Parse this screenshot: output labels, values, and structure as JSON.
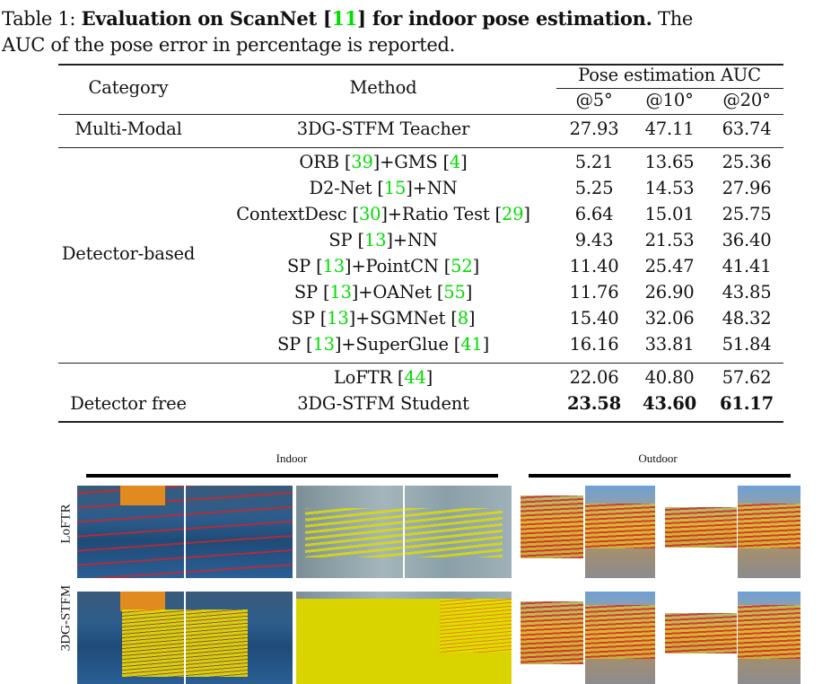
{
  "caption": {
    "label": "Table 1:",
    "title_pre": "Evaluation on ScanNet [",
    "title_cite": "11",
    "title_post": "] for indoor pose estimation.",
    "line1_tail": "The",
    "line2": "AUC of the pose error in percentage is reported."
  },
  "table": {
    "headers": {
      "category": "Category",
      "method": "Method",
      "group": "Pose estimation AUC",
      "cols": [
        "@5°",
        "@10°",
        "@20°"
      ]
    },
    "groups": [
      {
        "category": "Multi-Modal",
        "rows": [
          {
            "method": [
              {
                "t": "3DG-STFM Teacher"
              }
            ],
            "values": [
              "27.93",
              "47.11",
              "63.74"
            ],
            "bold": false
          }
        ]
      },
      {
        "category": "Detector-based",
        "rows": [
          {
            "method": [
              {
                "t": "ORB ["
              },
              {
                "c": "39"
              },
              {
                "t": "]+GMS ["
              },
              {
                "c": "4"
              },
              {
                "t": "]"
              }
            ],
            "values": [
              "5.21",
              "13.65",
              "25.36"
            ],
            "bold": false
          },
          {
            "method": [
              {
                "t": "D2-Net ["
              },
              {
                "c": "15"
              },
              {
                "t": "]+NN"
              }
            ],
            "values": [
              "5.25",
              "14.53",
              "27.96"
            ],
            "bold": false
          },
          {
            "method": [
              {
                "t": "ContextDesc ["
              },
              {
                "c": "30"
              },
              {
                "t": "]+Ratio Test ["
              },
              {
                "c": "29"
              },
              {
                "t": "]"
              }
            ],
            "values": [
              "6.64",
              "15.01",
              "25.75"
            ],
            "bold": false
          },
          {
            "method": [
              {
                "t": "SP ["
              },
              {
                "c": "13"
              },
              {
                "t": "]+NN"
              }
            ],
            "values": [
              "9.43",
              "21.53",
              "36.40"
            ],
            "bold": false
          },
          {
            "method": [
              {
                "t": "SP ["
              },
              {
                "c": "13"
              },
              {
                "t": "]+PointCN ["
              },
              {
                "c": "52"
              },
              {
                "t": "]"
              }
            ],
            "values": [
              "11.40",
              "25.47",
              "41.41"
            ],
            "bold": false
          },
          {
            "method": [
              {
                "t": "SP ["
              },
              {
                "c": "13"
              },
              {
                "t": "]+OANet ["
              },
              {
                "c": "55"
              },
              {
                "t": "]"
              }
            ],
            "values": [
              "11.76",
              "26.90",
              "43.85"
            ],
            "bold": false
          },
          {
            "method": [
              {
                "t": "SP ["
              },
              {
                "c": "13"
              },
              {
                "t": "]+SGMNet ["
              },
              {
                "c": "8"
              },
              {
                "t": "]"
              }
            ],
            "values": [
              "15.40",
              "32.06",
              "48.32"
            ],
            "bold": false
          },
          {
            "method": [
              {
                "t": "SP ["
              },
              {
                "c": "13"
              },
              {
                "t": "]+SuperGlue ["
              },
              {
                "c": "41"
              },
              {
                "t": "]"
              }
            ],
            "values": [
              "16.16",
              "33.81",
              "51.84"
            ],
            "bold": false
          }
        ]
      },
      {
        "category": "Detector free",
        "rows": [
          {
            "method": [
              {
                "t": "LoFTR ["
              },
              {
                "c": "44"
              },
              {
                "t": "]"
              }
            ],
            "values": [
              "22.06",
              "40.80",
              "57.62"
            ],
            "bold": false
          },
          {
            "method": [
              {
                "t": "3DG-STFM Student"
              }
            ],
            "values": [
              "23.58",
              "43.60",
              "61.17"
            ],
            "bold": true
          }
        ]
      }
    ]
  },
  "figure": {
    "indoor_label": "Indoor",
    "outdoor_label": "Outdoor",
    "row_labels": [
      "LoFTR",
      "3DG-STFM"
    ]
  },
  "colors": {
    "cite": "#00dd00"
  }
}
